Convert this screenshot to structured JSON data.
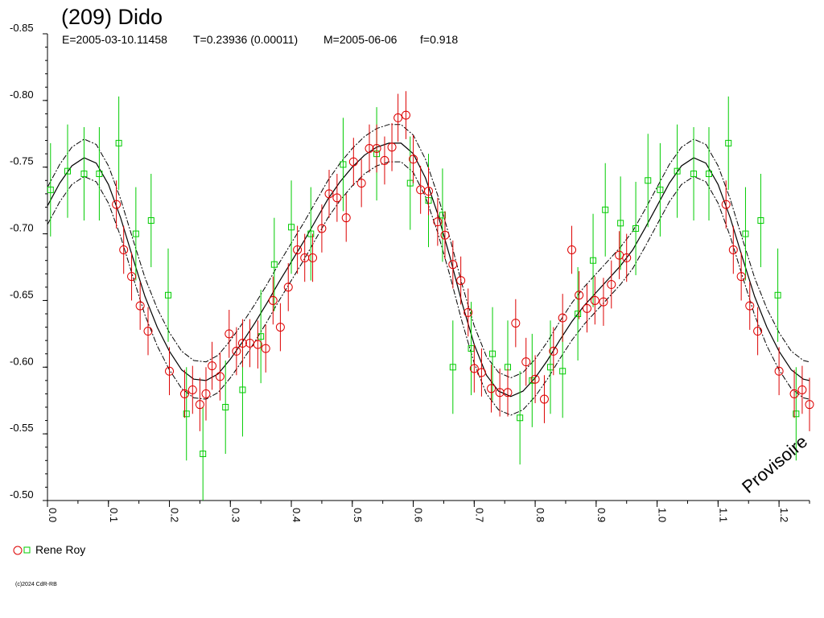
{
  "chart_data": {
    "type": "scatter",
    "title": "(209) Dido",
    "subtitle": {
      "epoch": "E=2005-03-10.11458",
      "period": "T=0.23936 (0.00011)",
      "mean_date": "M=2005-06-06",
      "fraction": "f=0.918"
    },
    "xlabel": "",
    "ylabel": "",
    "xlim": [
      0.0,
      1.25
    ],
    "ylim": [
      -0.85,
      -0.5
    ],
    "y_inverted": true,
    "x_tick_values": [
      0.0,
      0.1,
      0.2,
      0.3,
      0.4,
      0.5,
      0.6,
      0.7,
      0.8,
      0.9,
      1.0,
      1.1,
      1.2
    ],
    "x_tick_labels": [
      "0.0",
      "0.1",
      "0.2",
      "0.3",
      "0.4",
      "0.5",
      "0.6",
      "0.7",
      "0.8",
      "0.9",
      "1.0",
      "1.1",
      "1.2"
    ],
    "y_tick_values": [
      -0.85,
      -0.8,
      -0.75,
      -0.7,
      -0.65,
      -0.6,
      -0.55,
      -0.5
    ],
    "y_tick_labels": [
      "-0.85",
      "-0.80",
      "-0.75",
      "-0.70",
      "-0.65",
      "-0.60",
      "-0.55",
      "-0.50"
    ],
    "grid": false,
    "legend_position": "bottom-left",
    "watermark": "Provisoire",
    "copyright": "(c)2024 CdR-RB",
    "colors": {
      "series_red": "#dd0000",
      "series_green": "#00cc00",
      "curve": "#000000"
    },
    "fit_curve": {
      "x": [
        0.0,
        0.02,
        0.04,
        0.06,
        0.08,
        0.1,
        0.12,
        0.14,
        0.16,
        0.18,
        0.2,
        0.22,
        0.24,
        0.26,
        0.28,
        0.3,
        0.32,
        0.34,
        0.36,
        0.38,
        0.4,
        0.42,
        0.44,
        0.46,
        0.48,
        0.5,
        0.52,
        0.54,
        0.56,
        0.58,
        0.6,
        0.62,
        0.64,
        0.66,
        0.68,
        0.7,
        0.72,
        0.74,
        0.76,
        0.78,
        0.8,
        0.82,
        0.84,
        0.86,
        0.88,
        0.9,
        0.92,
        0.94,
        0.96,
        0.98,
        1.0,
        1.02,
        1.04,
        1.06,
        1.08,
        1.1,
        1.12,
        1.14,
        1.16,
        1.18,
        1.2,
        1.22,
        1.24,
        1.25
      ],
      "y": [
        -0.721,
        -0.738,
        -0.751,
        -0.757,
        -0.753,
        -0.737,
        -0.712,
        -0.682,
        -0.653,
        -0.63,
        -0.612,
        -0.598,
        -0.591,
        -0.59,
        -0.595,
        -0.606,
        -0.619,
        -0.633,
        -0.648,
        -0.664,
        -0.679,
        -0.694,
        -0.71,
        -0.726,
        -0.739,
        -0.75,
        -0.759,
        -0.765,
        -0.768,
        -0.768,
        -0.76,
        -0.742,
        -0.715,
        -0.683,
        -0.648,
        -0.617,
        -0.594,
        -0.582,
        -0.578,
        -0.582,
        -0.592,
        -0.605,
        -0.62,
        -0.634,
        -0.646,
        -0.656,
        -0.666,
        -0.676,
        -0.688,
        -0.704,
        -0.721,
        -0.738,
        -0.751,
        -0.757,
        -0.753,
        -0.737,
        -0.712,
        -0.682,
        -0.653,
        -0.63,
        -0.612,
        -0.598,
        -0.591,
        -0.59
      ],
      "envelope_offset": 0.014
    },
    "series": [
      {
        "name": "Rene Roy",
        "marker": "circle",
        "color": "#dd0000",
        "x": [
          0.113,
          0.125,
          0.138,
          0.152,
          0.165,
          0.2,
          0.225,
          0.238,
          0.25,
          0.26,
          0.27,
          0.283,
          0.298,
          0.31,
          0.32,
          0.332,
          0.345,
          0.358,
          0.37,
          0.382,
          0.395,
          0.41,
          0.422,
          0.435,
          0.45,
          0.462,
          0.475,
          0.49,
          0.502,
          0.515,
          0.528,
          0.54,
          0.553,
          0.565,
          0.575,
          0.588,
          0.6,
          0.612,
          0.625,
          0.64,
          0.652,
          0.665,
          0.678,
          0.69,
          0.7,
          0.712,
          0.728,
          0.742,
          0.755,
          0.768,
          0.785,
          0.8,
          0.815,
          0.83,
          0.845,
          0.86,
          0.872,
          0.885,
          0.898,
          0.912,
          0.925,
          0.938,
          0.95,
          1.113,
          1.125,
          1.138,
          1.152,
          1.165,
          1.2,
          1.225,
          1.238,
          1.25
        ],
        "y": [
          -0.722,
          -0.688,
          -0.668,
          -0.646,
          -0.627,
          -0.597,
          -0.58,
          -0.583,
          -0.572,
          -0.58,
          -0.601,
          -0.593,
          -0.625,
          -0.612,
          -0.618,
          -0.618,
          -0.617,
          -0.614,
          -0.65,
          -0.63,
          -0.66,
          -0.688,
          -0.682,
          -0.682,
          -0.704,
          -0.73,
          -0.727,
          -0.712,
          -0.754,
          -0.738,
          -0.764,
          -0.764,
          -0.755,
          -0.765,
          -0.787,
          -0.789,
          -0.756,
          -0.733,
          -0.732,
          -0.709,
          -0.699,
          -0.677,
          -0.665,
          -0.641,
          -0.599,
          -0.596,
          -0.584,
          -0.581,
          -0.581,
          -0.633,
          -0.604,
          -0.591,
          -0.576,
          -0.612,
          -0.637,
          -0.688,
          -0.654,
          -0.644,
          -0.65,
          -0.649,
          -0.662,
          -0.684,
          -0.682,
          -0.722,
          -0.688,
          -0.668,
          -0.646,
          -0.627,
          -0.597,
          -0.58,
          -0.583,
          -0.572
        ],
        "err": [
          0.018,
          0.018,
          0.018,
          0.018,
          0.018,
          0.018,
          0.018,
          0.018,
          0.02,
          0.02,
          0.018,
          0.018,
          0.018,
          0.018,
          0.018,
          0.018,
          0.018,
          0.018,
          0.018,
          0.018,
          0.018,
          0.018,
          0.018,
          0.018,
          0.018,
          0.018,
          0.018,
          0.018,
          0.018,
          0.018,
          0.018,
          0.018,
          0.018,
          0.018,
          0.018,
          0.018,
          0.018,
          0.018,
          0.018,
          0.018,
          0.018,
          0.018,
          0.018,
          0.018,
          0.018,
          0.018,
          0.018,
          0.018,
          0.018,
          0.018,
          0.018,
          0.018,
          0.018,
          0.018,
          0.018,
          0.018,
          0.018,
          0.018,
          0.018,
          0.018,
          0.018,
          0.018,
          0.018,
          0.018,
          0.018,
          0.018,
          0.018,
          0.018,
          0.018,
          0.018,
          0.018,
          0.02
        ]
      },
      {
        "name": "Rene Roy",
        "marker": "square",
        "color": "#00cc00",
        "x": [
          0.005,
          0.033,
          0.06,
          0.085,
          0.117,
          0.145,
          0.17,
          0.198,
          0.228,
          0.255,
          0.292,
          0.32,
          0.35,
          0.372,
          0.4,
          0.432,
          0.485,
          0.54,
          0.595,
          0.625,
          0.648,
          0.665,
          0.695,
          0.73,
          0.755,
          0.775,
          0.795,
          0.825,
          0.845,
          0.87,
          0.895,
          0.915,
          0.94,
          0.965,
          0.985,
          1.005,
          1.033,
          1.06,
          1.085,
          1.117,
          1.145,
          1.17,
          1.198,
          1.228
        ],
        "y": [
          -0.733,
          -0.747,
          -0.745,
          -0.745,
          -0.768,
          -0.7,
          -0.71,
          -0.654,
          -0.565,
          -0.535,
          -0.57,
          -0.583,
          -0.623,
          -0.677,
          -0.705,
          -0.7,
          -0.752,
          -0.76,
          -0.738,
          -0.725,
          -0.714,
          -0.6,
          -0.614,
          -0.61,
          -0.6,
          -0.562,
          -0.59,
          -0.6,
          -0.597,
          -0.64,
          -0.68,
          -0.718,
          -0.708,
          -0.704,
          -0.74,
          -0.733,
          -0.747,
          -0.745,
          -0.745,
          -0.768,
          -0.7,
          -0.71,
          -0.654,
          -0.565
        ],
        "err": [
          0.035,
          0.035,
          0.035,
          0.035,
          0.035,
          0.035,
          0.035,
          0.035,
          0.035,
          0.035,
          0.035,
          0.035,
          0.035,
          0.035,
          0.035,
          0.035,
          0.035,
          0.035,
          0.035,
          0.035,
          0.035,
          0.035,
          0.035,
          0.035,
          0.035,
          0.035,
          0.035,
          0.035,
          0.035,
          0.035,
          0.035,
          0.035,
          0.035,
          0.035,
          0.035,
          0.035,
          0.035,
          0.035,
          0.035,
          0.035,
          0.035,
          0.035,
          0.035,
          0.035
        ]
      }
    ]
  }
}
